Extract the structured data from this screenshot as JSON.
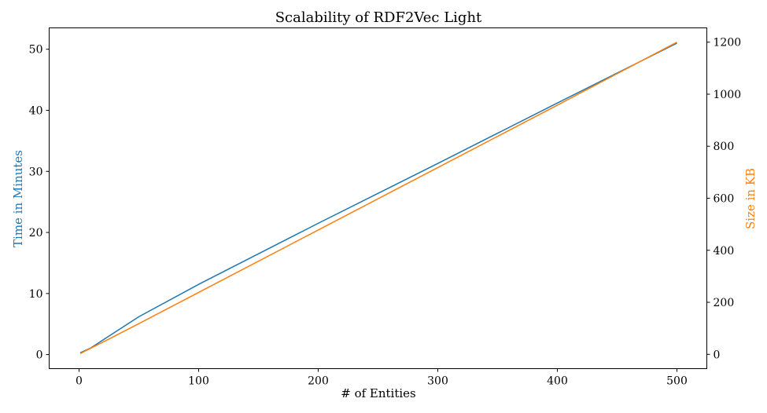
{
  "chart_data": {
    "type": "line",
    "title": "Scalability of RDF2Vec Light",
    "xlabel": "# of Entities",
    "ylabel": "Time in Minutes",
    "ylabel_right": "Size in KB",
    "xlim": [
      -25,
      525
    ],
    "ylim": [
      -2.3,
      53.5
    ],
    "ylim_right": [
      -55,
      1255
    ],
    "xticks": [
      "0",
      "100",
      "200",
      "300",
      "400",
      "500"
    ],
    "yticks": [
      "0",
      "10",
      "20",
      "30",
      "40",
      "50"
    ],
    "yticks_right": [
      "0",
      "200",
      "400",
      "600",
      "800",
      "1000",
      "1200"
    ],
    "grid": false,
    "series": [
      {
        "axis": "left",
        "color": "#1f77b4",
        "x": [
          1,
          10,
          20,
          50,
          100,
          200,
          300,
          400,
          500
        ],
        "y": [
          0.3,
          1.1,
          2.4,
          6.2,
          11.5,
          21.5,
          31.3,
          41.2,
          51.0
        ]
      },
      {
        "axis": "right",
        "color": "#ff7f0e",
        "x": [
          1,
          10,
          20,
          50,
          100,
          200,
          300,
          400,
          500
        ],
        "y": [
          3,
          24,
          47,
          118,
          238,
          478,
          718,
          958,
          1200
        ]
      }
    ],
    "label_colors": {
      "left": "#1f77b4",
      "right": "#ff7f0e"
    }
  }
}
